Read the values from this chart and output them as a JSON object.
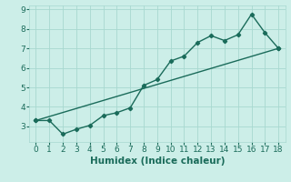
{
  "xlabel": "Humidex (Indice chaleur)",
  "line1_x": [
    0,
    1,
    2,
    3,
    4,
    5,
    6,
    7,
    8,
    9,
    10,
    11,
    12,
    13,
    14,
    15,
    16,
    17,
    18
  ],
  "line1_y": [
    3.3,
    3.3,
    2.6,
    2.85,
    3.05,
    3.55,
    3.7,
    3.95,
    5.1,
    5.4,
    6.35,
    6.6,
    7.3,
    7.65,
    7.4,
    7.7,
    8.75,
    7.8,
    7.0
  ],
  "line2_x": [
    0,
    18
  ],
  "line2_y": [
    3.3,
    7.0
  ],
  "line_color": "#1a6b5a",
  "bg_color": "#cceee8",
  "grid_color": "#a8d8d0",
  "axis_bg": "#cceee8",
  "xlim": [
    -0.5,
    18.5
  ],
  "ylim": [
    2.2,
    9.2
  ],
  "yticks": [
    3,
    4,
    5,
    6,
    7,
    8,
    9
  ],
  "xticks": [
    0,
    1,
    2,
    3,
    4,
    5,
    6,
    7,
    8,
    9,
    10,
    11,
    12,
    13,
    14,
    15,
    16,
    17,
    18
  ],
  "tick_color": "#1a6b5a",
  "label_fontsize": 6.5,
  "xlabel_fontsize": 7.5
}
